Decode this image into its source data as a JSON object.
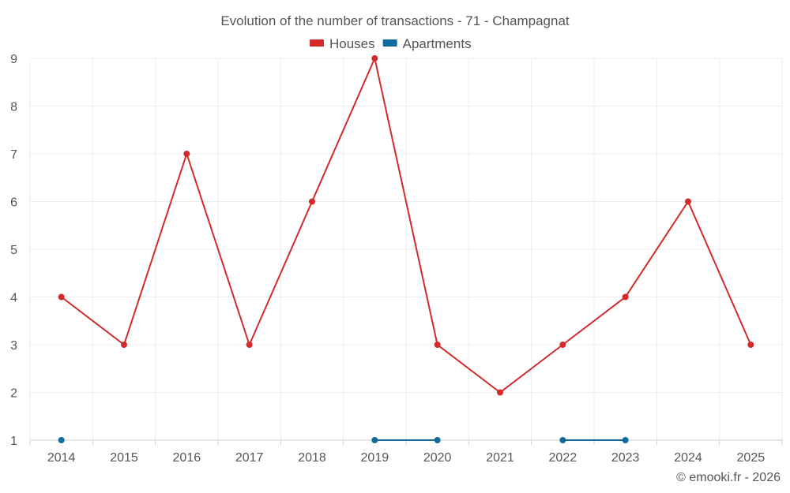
{
  "chart_data": {
    "type": "line",
    "title": "Evolution of the number of transactions - 71 - Champagnat",
    "xlabel": "",
    "ylabel": "",
    "categories": [
      "2014",
      "2015",
      "2016",
      "2017",
      "2018",
      "2019",
      "2020",
      "2021",
      "2022",
      "2023",
      "2024",
      "2025"
    ],
    "ylim": [
      1,
      9
    ],
    "yticks": [
      1,
      2,
      3,
      4,
      5,
      6,
      7,
      8,
      9
    ],
    "grid": true,
    "legend_position": "top-center",
    "series": [
      {
        "name": "Houses",
        "color": "#d32a2c",
        "values": [
          4,
          3,
          7,
          3,
          6,
          9,
          3,
          2,
          3,
          4,
          6,
          3
        ]
      },
      {
        "name": "Apartments",
        "color": "#0e6b9c",
        "values": [
          1,
          null,
          null,
          null,
          null,
          1,
          1,
          null,
          1,
          1,
          null,
          null
        ]
      }
    ]
  },
  "credit": "© emooki.fr - 2026"
}
